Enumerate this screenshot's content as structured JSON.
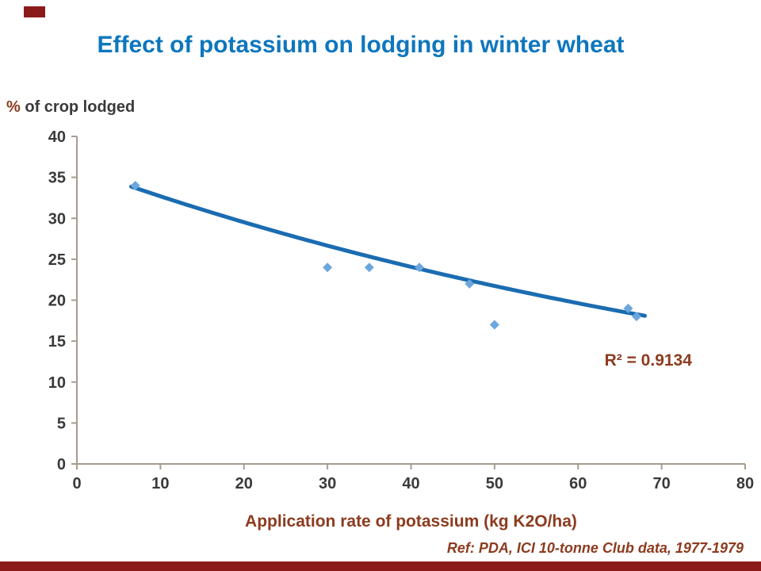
{
  "slide": {
    "title": "Effect of potassium on lodging in winter wheat",
    "y_axis_title_prefix": "%",
    "y_axis_title_rest": " of crop lodged",
    "x_axis_title": "Application rate of potassium (kg K2O/ha)",
    "reference": "Ref: PDA, ICI 10-tonne Club data, 1977-1979"
  },
  "colors": {
    "title_blue": "#0E76BE",
    "trend_blue": "#1B6CB1",
    "marker_blue": "#6CA6DD",
    "maroon": "#8B1A1A",
    "brown_text": "#8C3B1E",
    "axis_line": "#A79C8E",
    "tick_text": "#3A3A3A"
  },
  "chart_data": {
    "type": "scatter",
    "title": "Effect of potassium on lodging in winter wheat",
    "xlabel": "Application rate of potassium (kg K2O/ha)",
    "ylabel": "% of crop lodged",
    "xlim": [
      0,
      80
    ],
    "ylim": [
      0,
      40
    ],
    "x_ticks": [
      0,
      10,
      20,
      30,
      40,
      50,
      60,
      70,
      80
    ],
    "y_ticks": [
      0,
      5,
      10,
      15,
      20,
      25,
      30,
      35,
      40
    ],
    "grid": false,
    "legend": "none",
    "marker_shape": "diamond",
    "points": [
      [
        7,
        34
      ],
      [
        30,
        24
      ],
      [
        35,
        24
      ],
      [
        41,
        24
      ],
      [
        47,
        22
      ],
      [
        50,
        17
      ],
      [
        66,
        19
      ],
      [
        67,
        18
      ]
    ],
    "trendline": {
      "type": "exponential",
      "a": 36.2,
      "b": -0.0102,
      "x_start": 6.5,
      "x_end": 68,
      "r_squared": 0.9134
    },
    "annotation": {
      "text": "R² = 0.9134",
      "x": 68.4,
      "y": 12.0
    }
  }
}
